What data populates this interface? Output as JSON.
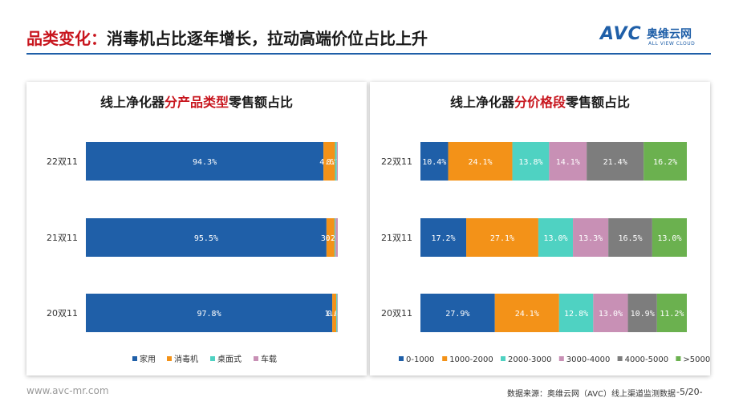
{
  "header": {
    "title_prefix": "品类变化：",
    "title_main": "消毒机占比逐年增长，拉动高端价位占比上升",
    "accent_color": "#c8161e"
  },
  "logo": {
    "mark": "AVC",
    "cn": "奥维云网",
    "en": "ALL VIEW CLOUD",
    "color": "#1f5fa8"
  },
  "footer": {
    "url": "www.avc-mr.com",
    "source": "数据来源：奥维云网（AVC）线上渠道监测数据",
    "page": "-5/20-"
  },
  "chart_data": [
    {
      "type": "bar",
      "orientation": "horizontal",
      "stacked": "percent",
      "title_parts": [
        "线上净化器",
        "分产品类型",
        "零售额占比"
      ],
      "title_highlight_index": 1,
      "categories": [
        "22双11",
        "21双11",
        "20双11"
      ],
      "series": [
        {
          "name": "家用",
          "color": "#1f5fa8",
          "values": [
            94.3,
            95.5,
            97.8
          ]
        },
        {
          "name": "消毒机",
          "color": "#f39218",
          "values": [
            4.6,
            3.2,
            1.6
          ]
        },
        {
          "name": "桌面式",
          "color": "#4fd2c2",
          "values": [
            0.7,
            0.4,
            0.4
          ]
        },
        {
          "name": "车载",
          "color": "#c890b5",
          "values": [
            0.4,
            0.9,
            0.2
          ]
        }
      ],
      "data_labels": [
        [
          "94.3%",
          "4.6%",
          "0.7%",
          ""
        ],
        [
          "95.5%",
          "3.2%",
          "0.4%",
          ""
        ],
        [
          "97.8%",
          "1.6%",
          "0.4%",
          ""
        ]
      ],
      "legend_position": "bottom",
      "grid": false
    },
    {
      "type": "bar",
      "orientation": "horizontal",
      "stacked": "percent",
      "title_parts": [
        "线上净化器",
        "分价格段",
        "零售额占比"
      ],
      "title_highlight_index": 1,
      "categories": [
        "22双11",
        "21双11",
        "20双11"
      ],
      "series": [
        {
          "name": "0-1000",
          "color": "#1f5fa8",
          "values": [
            10.4,
            17.2,
            27.9
          ]
        },
        {
          "name": "1000-2000",
          "color": "#f39218",
          "values": [
            24.1,
            27.1,
            24.1
          ]
        },
        {
          "name": "2000-3000",
          "color": "#4fd2c2",
          "values": [
            13.8,
            13.0,
            12.8
          ]
        },
        {
          "name": "3000-4000",
          "color": "#c890b5",
          "values": [
            14.1,
            13.3,
            13.0
          ]
        },
        {
          "name": "4000-5000",
          "color": "#7d7d7d",
          "values": [
            21.4,
            16.5,
            10.9
          ]
        },
        {
          "name": ">5000",
          "color": "#6bb14f",
          "values": [
            16.2,
            13.0,
            11.2
          ]
        }
      ],
      "data_labels": [
        [
          "10.4%",
          "24.1%",
          "13.8%",
          "14.1%",
          "21.4%",
          "16.2%"
        ],
        [
          "17.2%",
          "27.1%",
          "13.0%",
          "13.3%",
          "16.5%",
          "13.0%"
        ],
        [
          "27.9%",
          "24.1%",
          "12.8%",
          "13.0%",
          "10.9%",
          "11.2%"
        ]
      ],
      "legend_position": "bottom",
      "grid": false
    }
  ]
}
